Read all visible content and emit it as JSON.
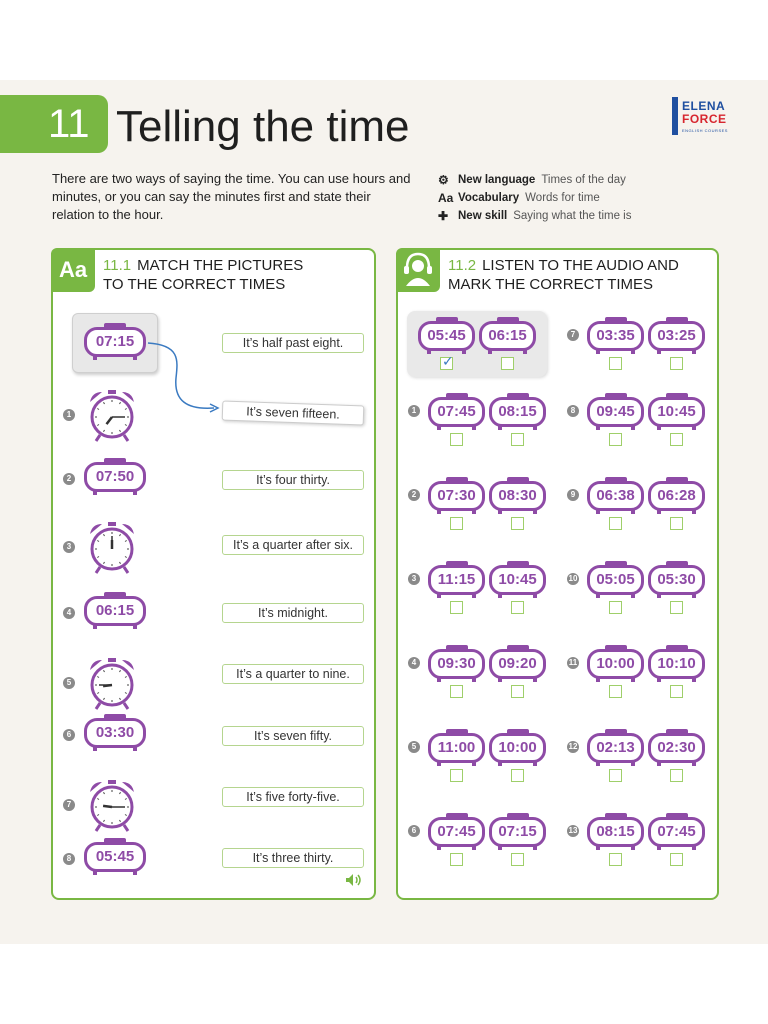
{
  "header": {
    "unit_number": "11",
    "title": "Telling the time",
    "logo_line1": "ELENA",
    "logo_line2": "FORCE",
    "logo_sub": "ENGLISH COURSES"
  },
  "intro": "There are two ways of saying the time. You can use hours and minutes, or you can say the minutes first and state their relation to the hour.",
  "meta": [
    {
      "icon": "gears-icon",
      "glyph": "⚙",
      "key": "New language",
      "value": "Times of the day"
    },
    {
      "icon": "vocabulary-icon",
      "glyph": "Aa",
      "key": "Vocabulary",
      "value": "Words for time"
    },
    {
      "icon": "puzzle-icon",
      "glyph": "✚",
      "key": "New skill",
      "value": "Saying what the time is"
    }
  ],
  "exercise1": {
    "icon_text": "Aa",
    "number": "11.1",
    "heading_line1": "MATCH THE PICTURES",
    "heading_line2": "TO THE CORRECT TIMES",
    "example_time": "07:15",
    "items": [
      {
        "num": "1",
        "type": "analog",
        "hour": 7,
        "minute": 15
      },
      {
        "num": "2",
        "type": "digital",
        "time": "07:50"
      },
      {
        "num": "3",
        "type": "analog",
        "hour": 12,
        "minute": 0
      },
      {
        "num": "4",
        "type": "digital",
        "time": "06:15"
      },
      {
        "num": "5",
        "type": "analog",
        "hour": 8,
        "minute": 45
      },
      {
        "num": "6",
        "type": "digital",
        "time": "03:30"
      },
      {
        "num": "7",
        "type": "analog",
        "hour": 9,
        "minute": 15
      },
      {
        "num": "8",
        "type": "digital",
        "time": "05:45"
      }
    ],
    "answers": [
      "It’s half past eight.",
      "It’s seven fifteen.",
      "It’s four thirty.",
      "It’s a quarter after six.",
      "It’s midnight.",
      "It’s a quarter to nine.",
      "It’s seven fifty.",
      "It’s five forty-five.",
      "It’s three thirty."
    ]
  },
  "exercise2": {
    "number": "11.2",
    "heading_line1": "LISTEN TO THE AUDIO AND",
    "heading_line2": "MARK THE CORRECT TIMES",
    "example": {
      "a": "05:45",
      "b": "06:15",
      "checked": "a"
    },
    "left_items": [
      {
        "num": "1",
        "a": "07:45",
        "b": "08:15"
      },
      {
        "num": "2",
        "a": "07:30",
        "b": "08:30"
      },
      {
        "num": "3",
        "a": "11:15",
        "b": "10:45"
      },
      {
        "num": "4",
        "a": "09:30",
        "b": "09:20"
      },
      {
        "num": "5",
        "a": "11:00",
        "b": "10:00"
      },
      {
        "num": "6",
        "a": "07:45",
        "b": "07:15"
      }
    ],
    "right_items": [
      {
        "num": "7",
        "a": "03:35",
        "b": "03:25"
      },
      {
        "num": "8",
        "a": "09:45",
        "b": "10:45"
      },
      {
        "num": "9",
        "a": "06:38",
        "b": "06:28"
      },
      {
        "num": "10",
        "a": "05:05",
        "b": "05:30"
      },
      {
        "num": "11",
        "a": "10:00",
        "b": "10:10"
      },
      {
        "num": "12",
        "a": "02:13",
        "b": "02:30"
      },
      {
        "num": "13",
        "a": "08:15",
        "b": "07:45"
      }
    ]
  }
}
